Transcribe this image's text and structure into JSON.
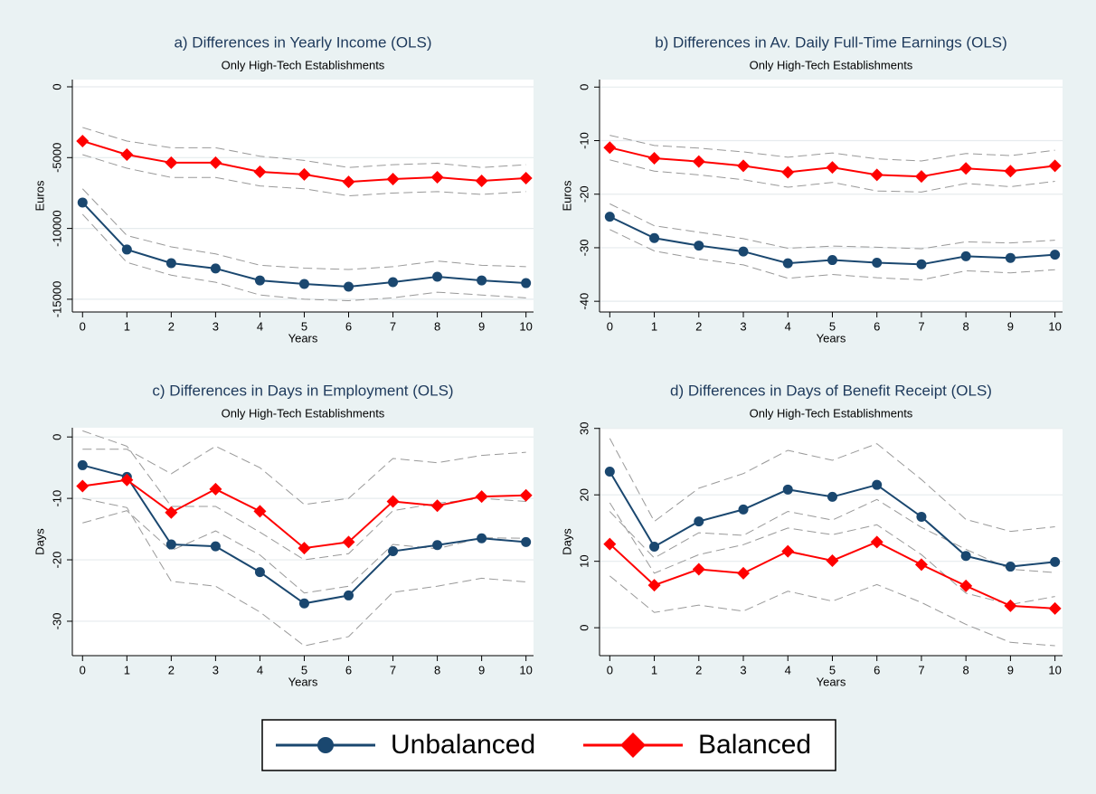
{
  "chart_data": [
    {
      "type": "line",
      "title": "a) Differences in Yearly Income (OLS)",
      "subtitle": "Only High-Tech Establishments",
      "xlabel": "Years",
      "ylabel": "Euros",
      "x": [
        0,
        1,
        2,
        3,
        4,
        5,
        6,
        7,
        8,
        9,
        10
      ],
      "xlim": [
        -0.23,
        10.17
      ],
      "xticks": [
        0,
        1,
        2,
        3,
        4,
        5,
        6,
        7,
        8,
        9,
        10
      ],
      "ylim": [
        -15900,
        510
      ],
      "yticks": [
        -15000,
        -10000,
        -5000,
        0
      ],
      "grid": true,
      "ci_color": "#999999",
      "series": [
        {
          "name": "Unbalanced",
          "color": "#1a476f",
          "marker": "circle",
          "values": [
            -8170,
            -11490,
            -12450,
            -12830,
            -13670,
            -13920,
            -14110,
            -13790,
            -13410,
            -13670,
            -13860
          ],
          "ci_upper": [
            -7200,
            -10500,
            -11300,
            -11800,
            -12600,
            -12800,
            -12900,
            -12700,
            -12300,
            -12600,
            -12700
          ],
          "ci_lower": [
            -9000,
            -12400,
            -13300,
            -13800,
            -14700,
            -15000,
            -15100,
            -14900,
            -14500,
            -14700,
            -14900
          ]
        },
        {
          "name": "Balanced",
          "color": "#ff0000",
          "marker": "diamond",
          "values": [
            -3830,
            -4790,
            -5360,
            -5360,
            -6000,
            -6190,
            -6710,
            -6510,
            -6390,
            -6640,
            -6450
          ],
          "ci_upper": [
            -2870,
            -3830,
            -4300,
            -4300,
            -4900,
            -5200,
            -5700,
            -5500,
            -5400,
            -5700,
            -5500
          ],
          "ci_lower": [
            -4790,
            -5750,
            -6400,
            -6400,
            -7000,
            -7200,
            -7700,
            -7500,
            -7400,
            -7600,
            -7400
          ]
        }
      ]
    },
    {
      "type": "line",
      "title": "b) Differences in Av. Daily Full-Time Earnings (OLS)",
      "subtitle": "Only High-Tech Establishments",
      "xlabel": "Years",
      "ylabel": "Euros",
      "x": [
        0,
        1,
        2,
        3,
        4,
        5,
        6,
        7,
        8,
        9,
        10
      ],
      "xlim": [
        -0.23,
        10.17
      ],
      "xticks": [
        0,
        1,
        2,
        3,
        4,
        5,
        6,
        7,
        8,
        9,
        10
      ],
      "ylim": [
        -42,
        1.4
      ],
      "yticks": [
        -40,
        -30,
        -20,
        -10,
        0
      ],
      "grid": true,
      "ci_color": "#999999",
      "series": [
        {
          "name": "Unbalanced",
          "color": "#1a476f",
          "marker": "circle",
          "values": [
            -24.2,
            -28.2,
            -29.6,
            -30.7,
            -32.9,
            -32.3,
            -32.8,
            -33.1,
            -31.6,
            -31.9,
            -31.3
          ],
          "ci_upper": [
            -21.8,
            -25.9,
            -27.1,
            -28.3,
            -30.1,
            -29.7,
            -29.9,
            -30.2,
            -28.9,
            -29.1,
            -28.6
          ],
          "ci_lower": [
            -26.6,
            -30.6,
            -32.1,
            -33.2,
            -35.7,
            -35.0,
            -35.6,
            -36.0,
            -34.3,
            -34.7,
            -34.1
          ]
        },
        {
          "name": "Balanced",
          "color": "#ff0000",
          "marker": "diamond",
          "values": [
            -11.3,
            -13.3,
            -13.9,
            -14.7,
            -15.9,
            -15.0,
            -16.4,
            -16.7,
            -15.2,
            -15.7,
            -14.7
          ],
          "ci_upper": [
            -9.0,
            -10.9,
            -11.4,
            -12.1,
            -13.1,
            -12.3,
            -13.4,
            -13.8,
            -12.4,
            -12.8,
            -11.8
          ],
          "ci_lower": [
            -13.6,
            -15.7,
            -16.4,
            -17.3,
            -18.7,
            -17.8,
            -19.4,
            -19.6,
            -18.0,
            -18.6,
            -17.6
          ]
        }
      ]
    },
    {
      "type": "line",
      "title": "c) Differences in Days in Employment (OLS)",
      "subtitle": "Only High-Tech Establishments",
      "xlabel": "Years",
      "ylabel": "Days",
      "x": [
        0,
        1,
        2,
        3,
        4,
        5,
        6,
        7,
        8,
        9,
        10
      ],
      "xlim": [
        -0.23,
        10.17
      ],
      "xticks": [
        0,
        1,
        2,
        3,
        4,
        5,
        6,
        7,
        8,
        9,
        10
      ],
      "ylim": [
        -35.6,
        1.5
      ],
      "yticks": [
        -30,
        -20,
        -10,
        0
      ],
      "grid": true,
      "ci_color": "#999999",
      "series": [
        {
          "name": "Unbalanced",
          "color": "#1a476f",
          "marker": "circle",
          "values": [
            -4.6,
            -6.5,
            -17.5,
            -17.8,
            -22,
            -27.1,
            -25.8,
            -18.6,
            -17.6,
            -16.5,
            -17.1
          ],
          "ci_upper": [
            1,
            -1.5,
            -11.3,
            -11.3,
            -15.5,
            -20,
            -19,
            -12,
            -10.8,
            -10,
            -10.5
          ],
          "ci_lower": [
            -10,
            -11.5,
            -23.5,
            -24.3,
            -28.5,
            -34,
            -32.5,
            -25.3,
            -24.3,
            -23,
            -23.6
          ]
        },
        {
          "name": "Balanced",
          "color": "#ff0000",
          "marker": "diamond",
          "values": [
            -8,
            -7,
            -12.3,
            -8.5,
            -12.1,
            -18.1,
            -17.1,
            -10.5,
            -11.2,
            -9.7,
            -9.5
          ],
          "ci_upper": [
            -2,
            -2,
            -6,
            -1.5,
            -5,
            -11,
            -10,
            -3.5,
            -4.2,
            -3,
            -2.5
          ],
          "ci_lower": [
            -14,
            -12,
            -18.5,
            -15.3,
            -19.2,
            -25.4,
            -24.3,
            -17.5,
            -18.2,
            -16.4,
            -16.5
          ]
        }
      ]
    },
    {
      "type": "line",
      "title": "d) Differences in Days of Benefit Receipt (OLS)",
      "subtitle": "Only High-Tech Establishments",
      "xlabel": "Years",
      "ylabel": "Days",
      "x": [
        0,
        1,
        2,
        3,
        4,
        5,
        6,
        7,
        8,
        9,
        10
      ],
      "xlim": [
        -0.23,
        10.17
      ],
      "xticks": [
        0,
        1,
        2,
        3,
        4,
        5,
        6,
        7,
        8,
        9,
        10
      ],
      "ylim": [
        -4.2,
        30.1
      ],
      "yticks": [
        0,
        10,
        20,
        30
      ],
      "grid": true,
      "ci_color": "#999999",
      "series": [
        {
          "name": "Unbalanced",
          "color": "#1a476f",
          "marker": "circle",
          "values": [
            23.5,
            12.2,
            16,
            17.8,
            20.8,
            19.7,
            21.5,
            16.7,
            10.8,
            9.2,
            9.9
          ],
          "ci_upper": [
            28.5,
            16,
            21,
            23.2,
            26.7,
            25.2,
            27.7,
            22.3,
            16.3,
            14.5,
            15.2
          ],
          "ci_lower": [
            18.8,
            8.2,
            11,
            12.5,
            15,
            14,
            15.5,
            11,
            5.2,
            3.5,
            4.7
          ]
        },
        {
          "name": "Balanced",
          "color": "#ff0000",
          "marker": "diamond",
          "values": [
            12.6,
            6.4,
            8.8,
            8.2,
            11.5,
            10.1,
            12.9,
            9.5,
            6.3,
            3.3,
            2.9
          ],
          "ci_upper": [
            17.5,
            10.5,
            14.3,
            13.9,
            17.5,
            16.2,
            19.3,
            15.1,
            11.8,
            8.8,
            8.3
          ],
          "ci_lower": [
            7.8,
            2.3,
            3.4,
            2.5,
            5.5,
            4,
            6.5,
            3.8,
            0.5,
            -2.2,
            -2.7
          ]
        }
      ]
    }
  ]
}
